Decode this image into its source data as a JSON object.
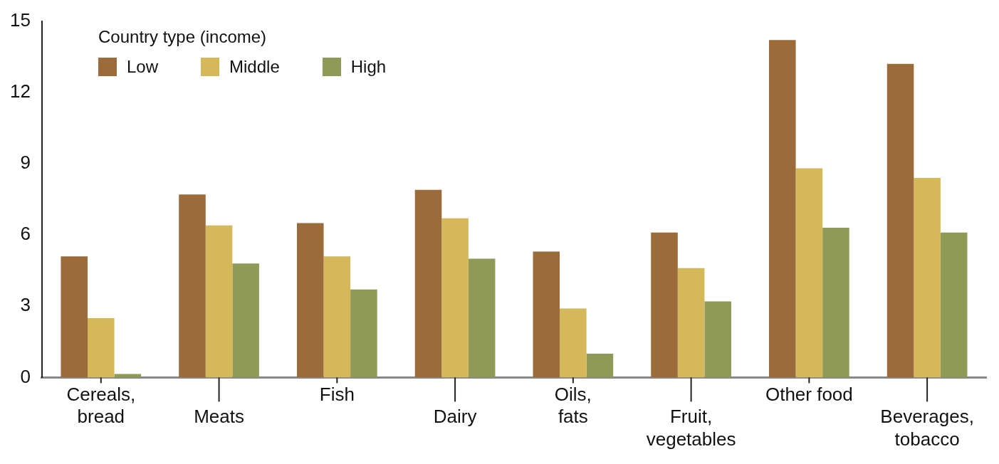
{
  "chart_data": {
    "type": "bar",
    "legend_title": "Country type (income)",
    "legend": "top left",
    "categories": [
      "Cereals, bread",
      "Meats",
      "Fish",
      "Dairy",
      "Oils, fats",
      "Fruit, vegetables",
      "Other food",
      "Beverages, tobacco"
    ],
    "series": [
      {
        "name": "Low",
        "color": "#9b6b3a",
        "values": [
          5.1,
          7.7,
          6.5,
          7.9,
          5.3,
          6.1,
          14.2,
          13.2
        ]
      },
      {
        "name": "Middle",
        "color": "#d4b85a",
        "values": [
          2.5,
          6.4,
          5.1,
          6.7,
          2.9,
          4.6,
          8.8,
          8.4
        ]
      },
      {
        "name": "High",
        "color": "#8e9a55",
        "values": [
          0.15,
          4.8,
          3.7,
          5.0,
          1.0,
          3.2,
          6.3,
          6.1
        ]
      }
    ],
    "ylim": [
      0,
      15
    ],
    "yticks": [
      0,
      3,
      6,
      9,
      12,
      15
    ],
    "grid": false
  }
}
